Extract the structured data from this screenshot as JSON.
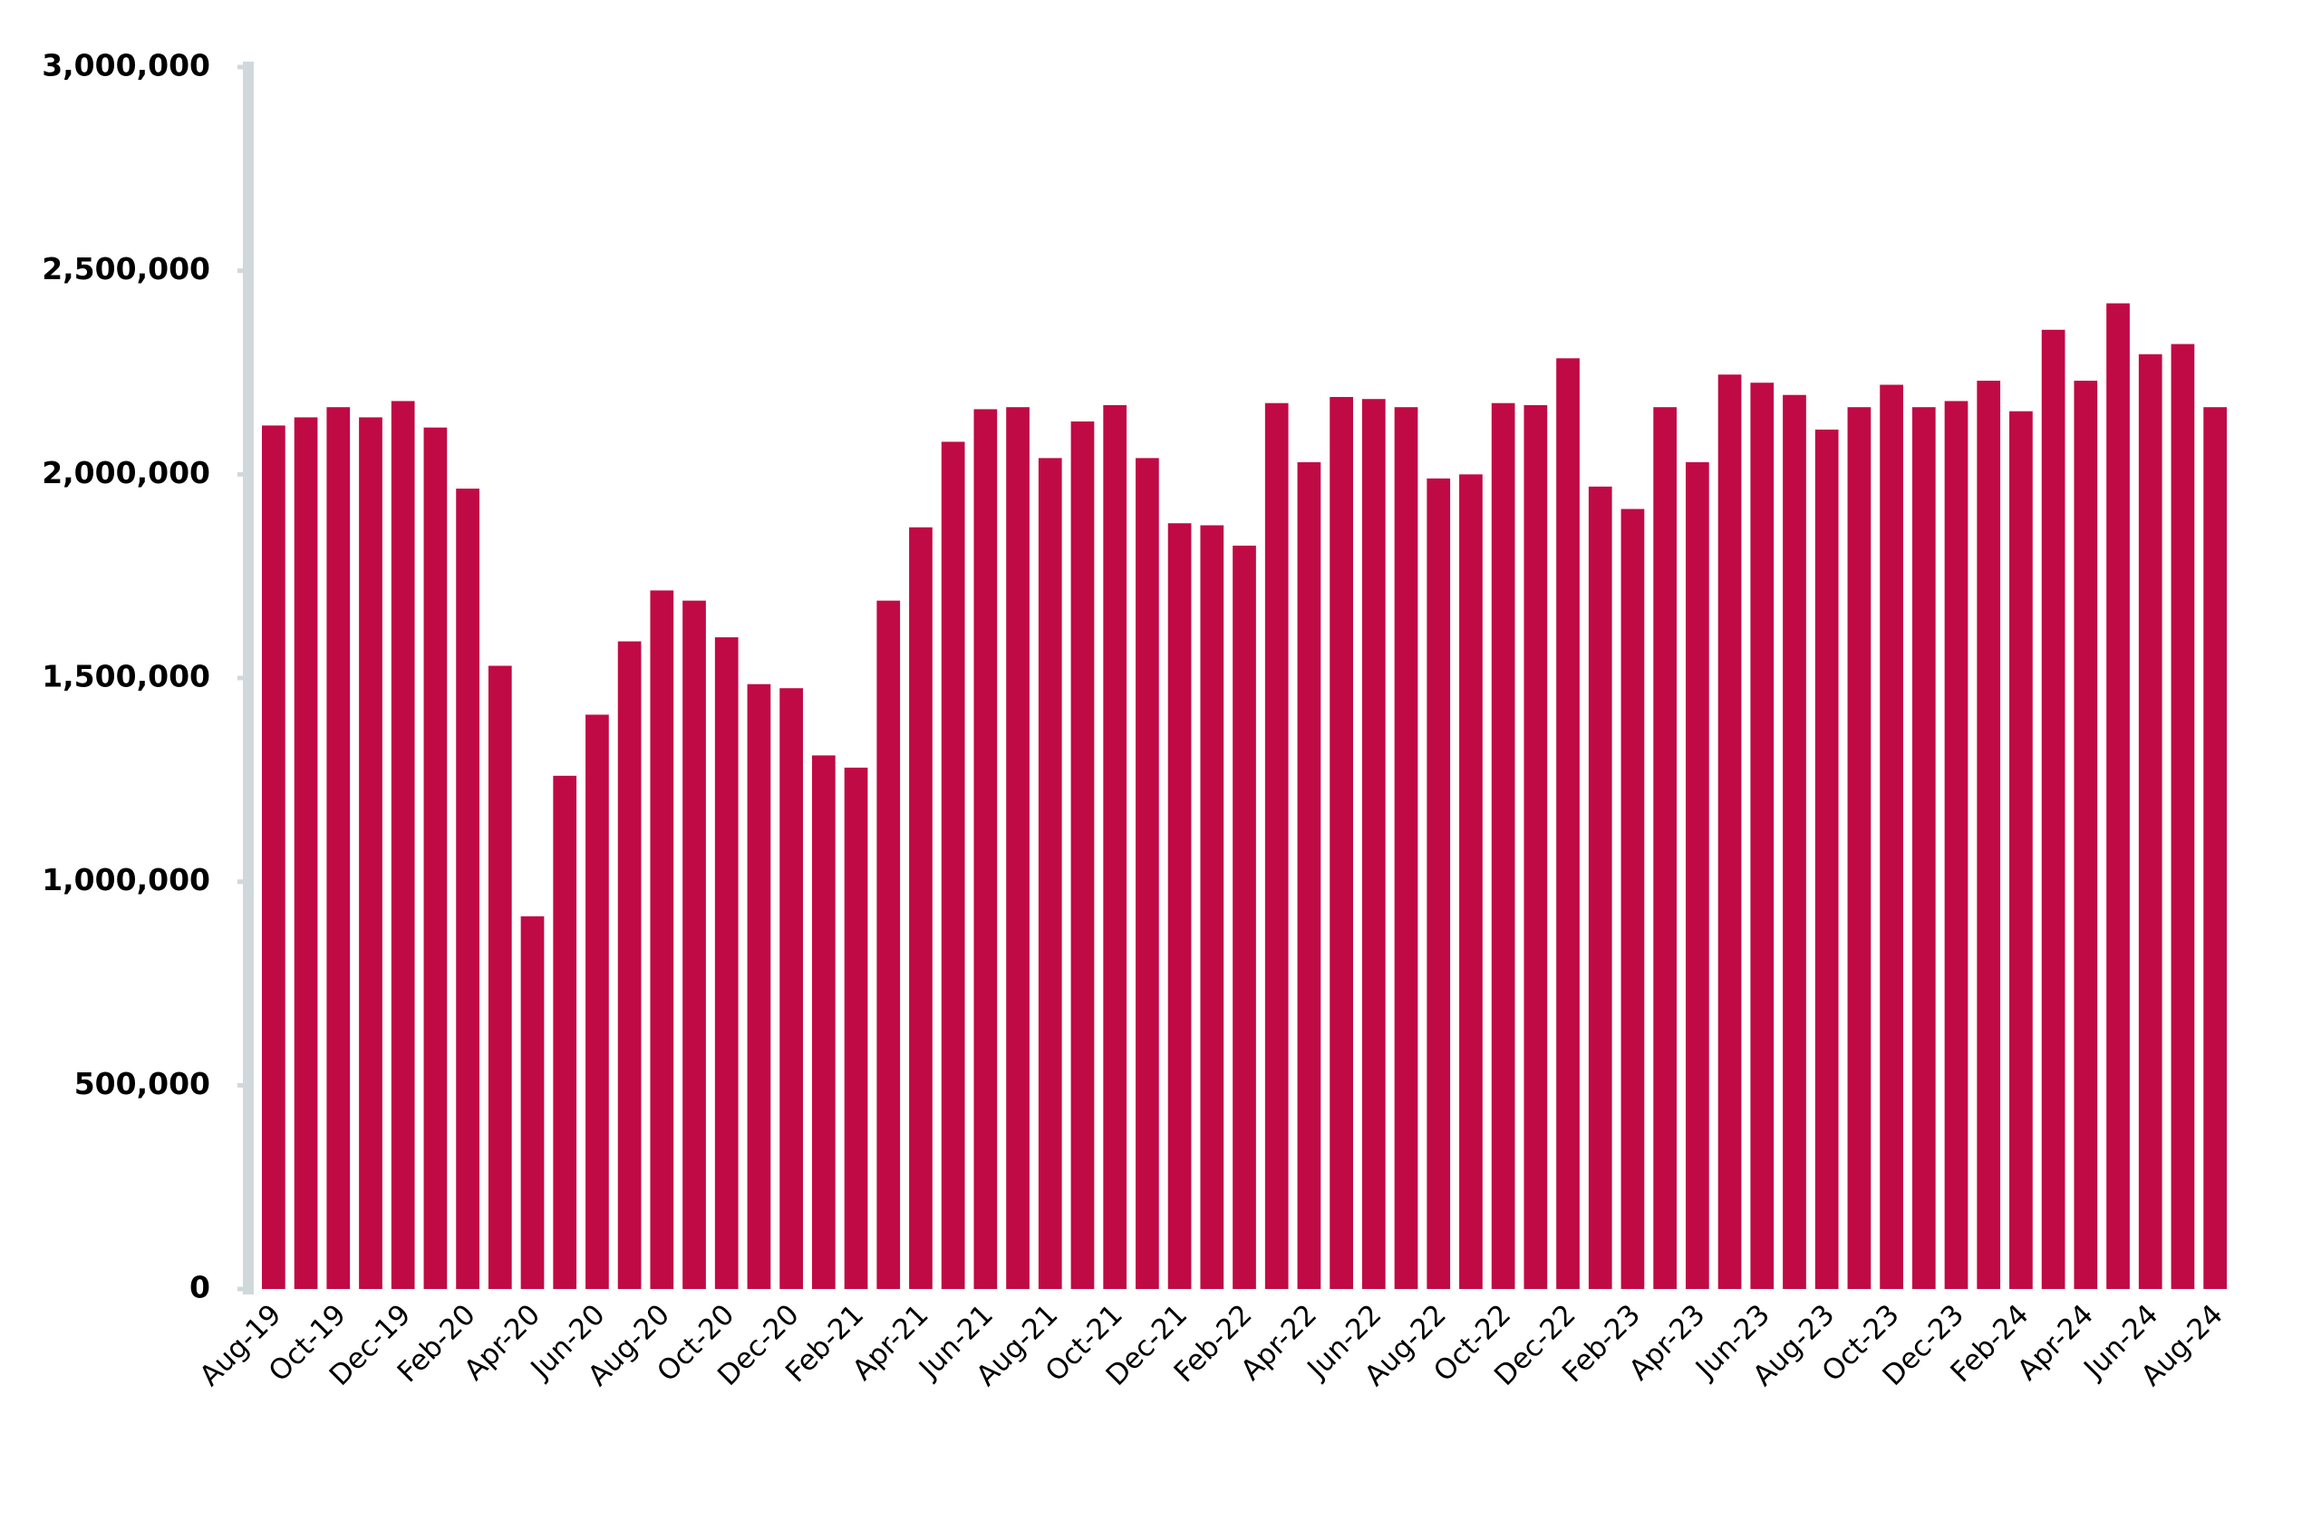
{
  "chart_data": {
    "type": "bar",
    "categories": [
      "Aug-19",
      null,
      "Oct-19",
      null,
      "Dec-19",
      null,
      "Feb-20",
      null,
      "Apr-20",
      null,
      "Jun-20",
      null,
      "Aug-20",
      null,
      "Oct-20",
      null,
      "Dec-20",
      null,
      "Feb-21",
      null,
      "Apr-21",
      null,
      "Jun-21",
      null,
      "Aug-21",
      null,
      "Oct-21",
      null,
      "Dec-21",
      null,
      "Feb-22",
      null,
      "Apr-22",
      null,
      "Jun-22",
      null,
      "Aug-22",
      null,
      "Oct-22",
      null,
      "Dec-22",
      null,
      "Feb-23",
      null,
      "Apr-23",
      null,
      "Jun-23",
      null,
      "Aug-23",
      null,
      "Oct-23",
      null,
      "Dec-23",
      null,
      "Feb-24",
      null,
      "Apr-24",
      null,
      "Jun-24",
      null,
      "Aug-24"
    ],
    "values": [
      2120000,
      2140000,
      2165000,
      2140000,
      2180000,
      2115000,
      1965000,
      1530000,
      915000,
      1260000,
      1410000,
      1590000,
      1715000,
      1690000,
      1600000,
      1485000,
      1475000,
      1310000,
      1280000,
      1690000,
      1870000,
      2080000,
      2160000,
      2165000,
      2040000,
      2130000,
      2170000,
      2040000,
      1880000,
      1875000,
      1825000,
      2175000,
      2030000,
      2190000,
      2185000,
      2165000,
      1990000,
      2000000,
      2175000,
      2170000,
      2285000,
      1970000,
      1915000,
      2165000,
      2030000,
      2245000,
      2225000,
      2195000,
      2110000,
      2165000,
      2220000,
      2165000,
      2180000,
      2230000,
      2155000,
      2355000,
      2230000,
      2420000,
      2295000,
      2320000,
      2165000
    ],
    "color": "#c00a45",
    "ylim": [
      0,
      3000000
    ],
    "yticks": [
      0,
      {
        "value": 500000,
        "label": "500,000"
      },
      {
        "value": 1000000,
        "label": "1,000,000"
      },
      {
        "value": 1500000,
        "label": "1,500,000"
      },
      {
        "value": 2000000,
        "label": "2,000,000"
      },
      {
        "value": 2500000,
        "label": "2,500,000"
      },
      {
        "value": 3000000,
        "label": "3,000,000"
      }
    ],
    "grid": false
  }
}
